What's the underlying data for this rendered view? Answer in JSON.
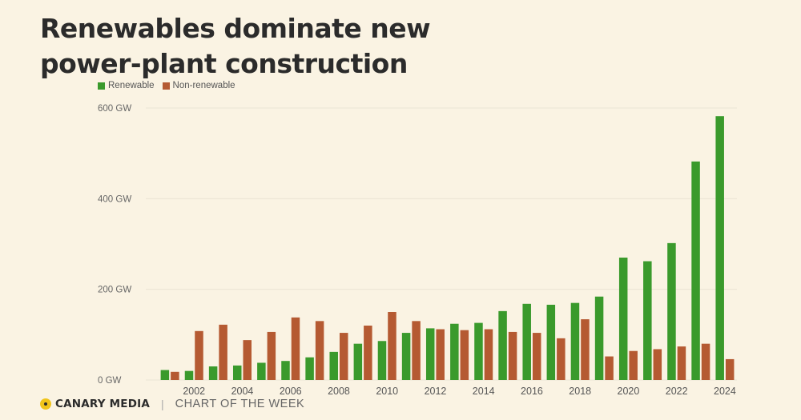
{
  "header": {
    "title_line1": "Renewables dominate new",
    "title_line2": "power-plant construction"
  },
  "legend": {
    "renewable_label": "Renewable",
    "nonrenewable_label": "Non-renewable"
  },
  "colors": {
    "renewable": "#3a9a2c",
    "nonrenewable": "#b55a32",
    "gridline": "#ebe4d4"
  },
  "footer": {
    "brand": "CANARY MEDIA",
    "separator": "|",
    "section": "CHART OF THE WEEK",
    "logo_icon": "canary-dot-icon"
  },
  "chart_data": {
    "type": "bar",
    "categories": [
      "2001",
      "2002",
      "2003",
      "2004",
      "2005",
      "2006",
      "2007",
      "2008",
      "2009",
      "2010",
      "2011",
      "2012",
      "2013",
      "2014",
      "2015",
      "2016",
      "2017",
      "2018",
      "2019",
      "2020",
      "2021",
      "2022",
      "2023",
      "2024"
    ],
    "series": [
      {
        "name": "Renewable",
        "values": [
          22,
          20,
          30,
          32,
          38,
          42,
          50,
          62,
          80,
          86,
          104,
          114,
          124,
          126,
          152,
          168,
          166,
          170,
          184,
          270,
          262,
          302,
          482,
          582
        ]
      },
      {
        "name": "Non-renewable",
        "values": [
          18,
          108,
          122,
          88,
          106,
          138,
          130,
          104,
          120,
          150,
          130,
          112,
          110,
          112,
          106,
          104,
          92,
          134,
          52,
          64,
          68,
          74,
          80,
          46
        ]
      }
    ],
    "x_tick_labels": [
      "2002",
      "2004",
      "2006",
      "2008",
      "2010",
      "2012",
      "2014",
      "2016",
      "2018",
      "2020",
      "2022",
      "2024"
    ],
    "y_ticks": [
      0,
      200,
      400,
      600
    ],
    "y_tick_labels": [
      "0 GW",
      "200 GW",
      "400 GW",
      "600 GW"
    ],
    "ylim": [
      0,
      600
    ],
    "grid": true,
    "legend_position": "top-left"
  }
}
